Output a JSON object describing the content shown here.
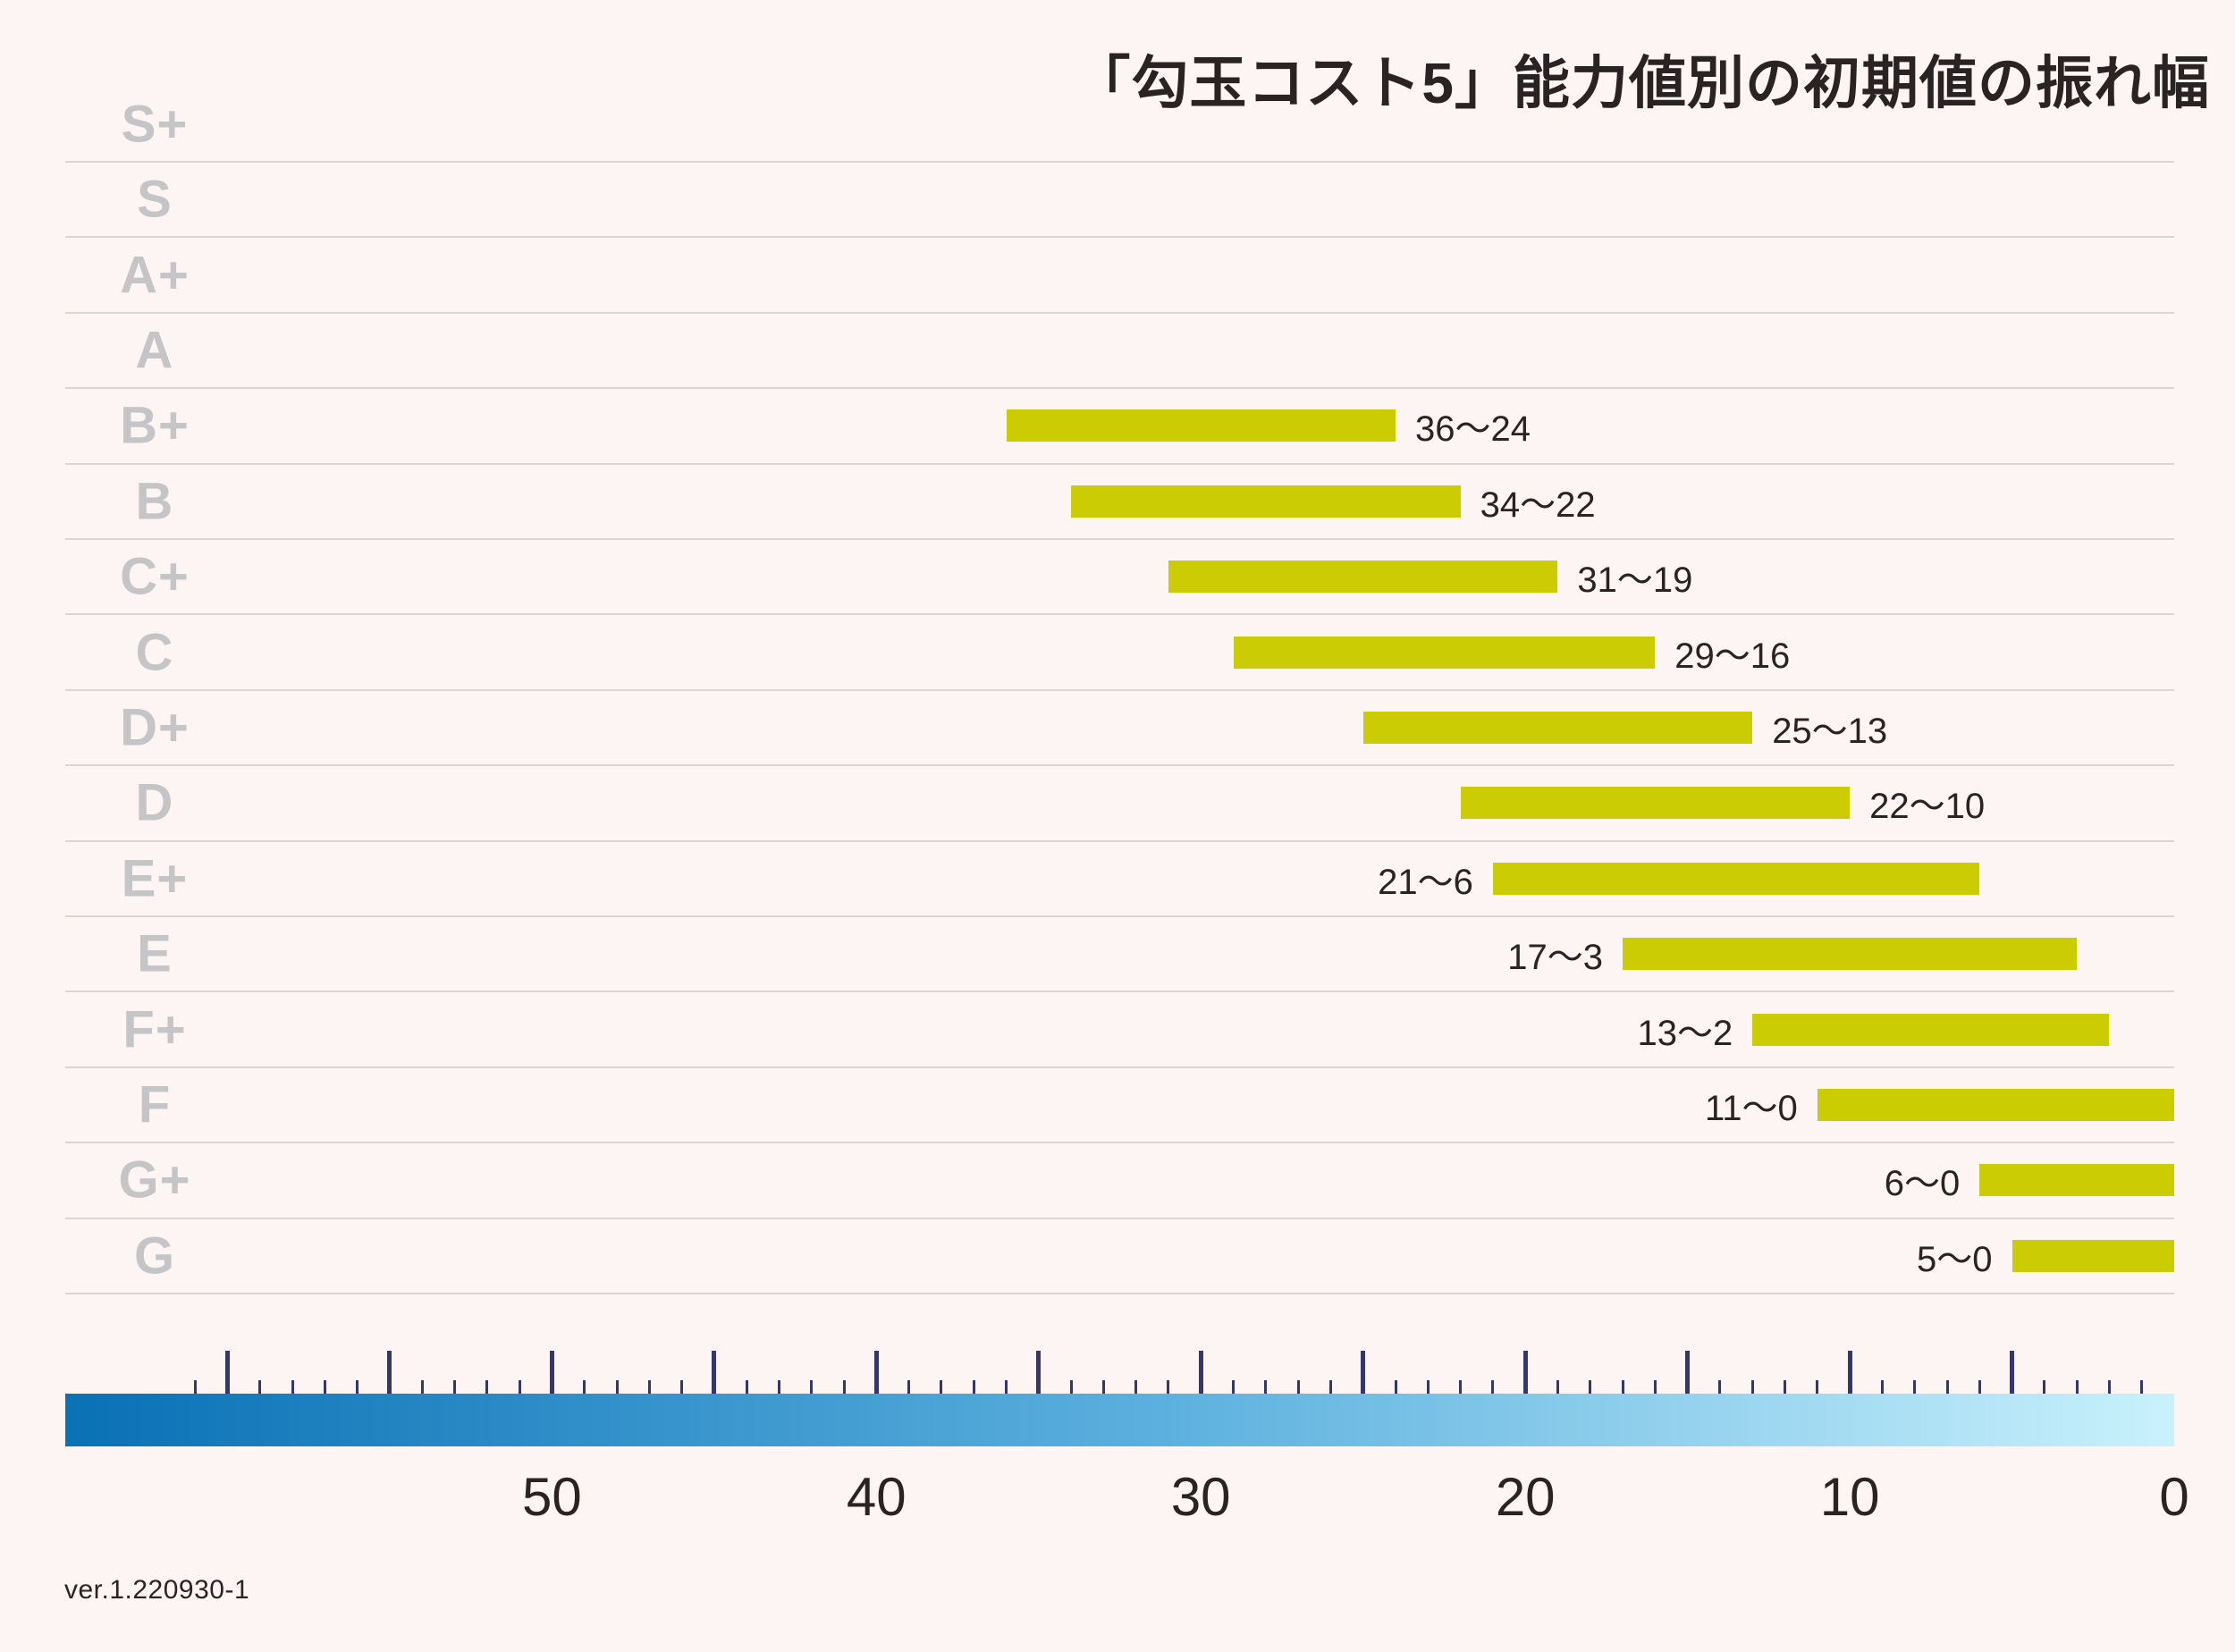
{
  "chart_data": {
    "type": "bar",
    "orientation": "horizontal_range",
    "title": "「勾玉コスト5」能力値別の初期値の振れ幅",
    "categories": [
      "S+",
      "S",
      "A+",
      "A",
      "B+",
      "B",
      "C+",
      "C",
      "D+",
      "D",
      "E+",
      "E",
      "F+",
      "F",
      "G+",
      "G"
    ],
    "series": [
      {
        "name": "初期値の振れ幅",
        "values": [
          null,
          null,
          null,
          null,
          {
            "max": 36,
            "min": 24,
            "label": "36〜24",
            "label_side": "right"
          },
          {
            "max": 34,
            "min": 22,
            "label": "34〜22",
            "label_side": "right"
          },
          {
            "max": 31,
            "min": 19,
            "label": "31〜19",
            "label_side": "right"
          },
          {
            "max": 29,
            "min": 16,
            "label": "29〜16",
            "label_side": "right"
          },
          {
            "max": 25,
            "min": 13,
            "label": "25〜13",
            "label_side": "right"
          },
          {
            "max": 22,
            "min": 10,
            "label": "22〜10",
            "label_side": "right"
          },
          {
            "max": 21,
            "min": 6,
            "label": "21〜6",
            "label_side": "left"
          },
          {
            "max": 17,
            "min": 3,
            "label": "17〜3",
            "label_side": "left"
          },
          {
            "max": 13,
            "min": 2,
            "label": "13〜2",
            "label_side": "left"
          },
          {
            "max": 11,
            "min": 0,
            "label": "11〜0",
            "label_side": "left"
          },
          {
            "max": 6,
            "min": 0,
            "label": "6〜0",
            "label_side": "left"
          },
          {
            "max": 5,
            "min": 0,
            "label": "5〜0",
            "label_side": "left"
          }
        ]
      }
    ],
    "x_axis": {
      "direction": "right_to_left_zero_at_right",
      "range": [
        0,
        65
      ],
      "tick_labels": [
        "50",
        "40",
        "30",
        "20",
        "10",
        "0"
      ],
      "tick_label_values": [
        50,
        40,
        30,
        20,
        10,
        0
      ],
      "minor_tick_step": 1,
      "major_tick_step": 5,
      "minor_tick_range": [
        1,
        61
      ],
      "grid": false,
      "style": "gradient_ruler"
    },
    "legend": null
  },
  "colors": {
    "background": "#fcf5f4",
    "bar": "#cccc04",
    "separator": "#d9d5d5",
    "grade_label": "#c5c4c6",
    "text_dark": "#2a2324",
    "tick": "#343769",
    "gradient_left": "#0a71b5",
    "gradient_mid": "#5cb0de",
    "gradient_right": "#c9f1fc"
  },
  "footer": {
    "version": "ver.1.220930-1"
  }
}
